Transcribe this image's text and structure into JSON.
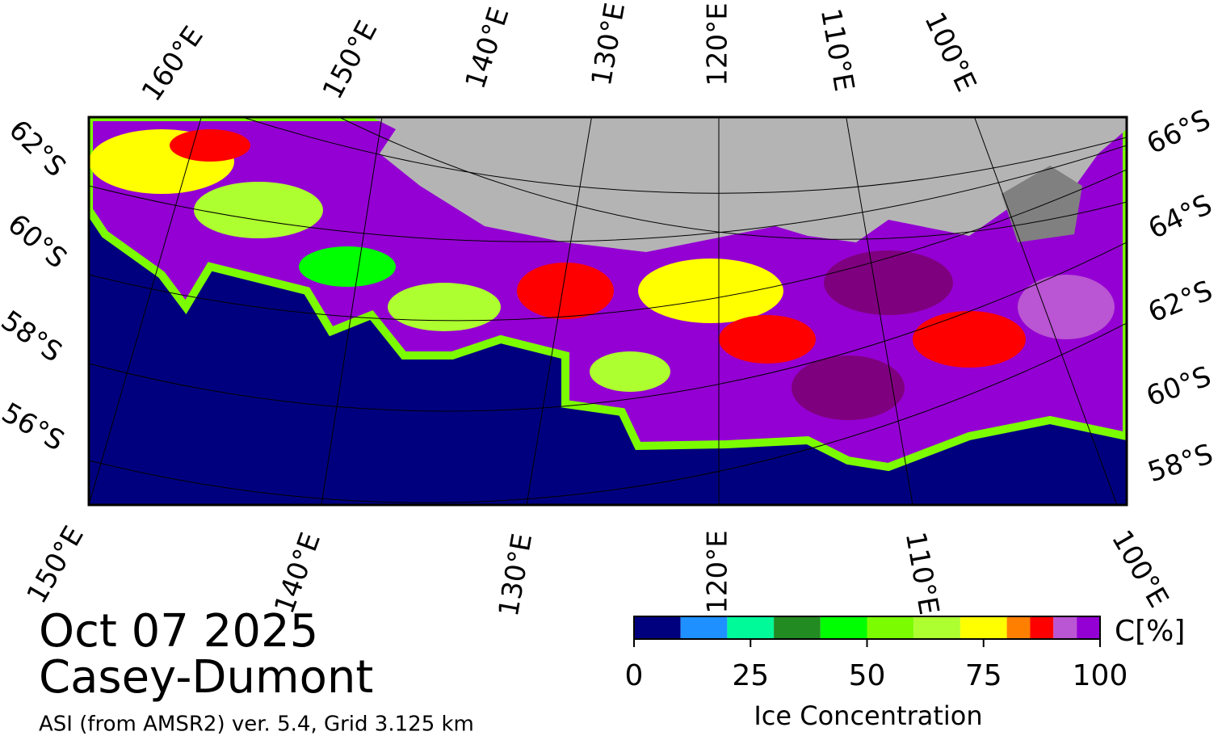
{
  "map": {
    "top_labels": [
      "160°E",
      "150°E",
      "140°E",
      "130°E",
      "120°E",
      "110°E",
      "100°E"
    ],
    "left_labels": [
      "62°S",
      "60°S",
      "58°S",
      "56°S"
    ],
    "right_labels": [
      "66°S",
      "64°S",
      "62°S",
      "60°S",
      "58°S"
    ],
    "bottom_labels": [
      "150°E",
      "140°E",
      "130°E",
      "120°E",
      "110°E",
      "100°E"
    ]
  },
  "date": "Oct 07 2025",
  "region": "Casey-Dumont",
  "source": "ASI (from AMSR2) ver. 5.4,  Grid 3.125 km",
  "colorbar": {
    "title": "Ice Concentration",
    "unit": "C[%]",
    "range": [
      0,
      100
    ],
    "ticks": [
      0,
      25,
      50,
      75,
      100
    ],
    "bins": [
      0,
      10,
      20,
      30,
      40,
      50,
      60,
      70,
      80,
      85,
      90,
      95,
      100
    ],
    "colors": [
      "#00007f",
      "#1e90ff",
      "#00fa9a",
      "#228b22",
      "#00ff00",
      "#7cfc00",
      "#adff2f",
      "#ffff00",
      "#ff7f00",
      "#ff0000",
      "#ba55d3",
      "#9400d3"
    ]
  }
}
